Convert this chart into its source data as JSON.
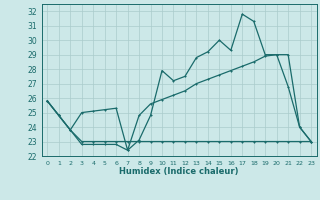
{
  "xlabel": "Humidex (Indice chaleur)",
  "bg_color": "#cce8e8",
  "grid_color": "#aacccc",
  "line_color": "#1a6b6b",
  "xlim": [
    -0.5,
    23.5
  ],
  "ylim": [
    22,
    32.5
  ],
  "xticks": [
    0,
    1,
    2,
    3,
    4,
    5,
    6,
    7,
    8,
    9,
    10,
    11,
    12,
    13,
    14,
    15,
    16,
    17,
    18,
    19,
    20,
    21,
    22,
    23
  ],
  "yticks": [
    22,
    23,
    24,
    25,
    26,
    27,
    28,
    29,
    30,
    31,
    32
  ],
  "series1_x": [
    0,
    1,
    2,
    3,
    4,
    5,
    6,
    7,
    8,
    9,
    10,
    11,
    12,
    13,
    14,
    15,
    16,
    17,
    18,
    19,
    20,
    21,
    22,
    23
  ],
  "series1_y": [
    25.8,
    24.8,
    23.8,
    22.8,
    22.8,
    22.8,
    22.8,
    22.4,
    23.1,
    24.8,
    27.9,
    27.2,
    27.5,
    28.8,
    29.2,
    30.0,
    29.3,
    31.8,
    31.3,
    29.0,
    29.0,
    26.8,
    24.0,
    23.0
  ],
  "series2_x": [
    0,
    1,
    2,
    3,
    4,
    5,
    6,
    7,
    8,
    9,
    10,
    11,
    12,
    13,
    14,
    15,
    16,
    17,
    18,
    19,
    20,
    21,
    22,
    23
  ],
  "series2_y": [
    25.8,
    24.8,
    23.8,
    25.0,
    25.1,
    25.2,
    25.3,
    22.4,
    24.8,
    25.6,
    25.9,
    26.2,
    26.5,
    27.0,
    27.3,
    27.6,
    27.9,
    28.2,
    28.5,
    28.9,
    29.0,
    29.0,
    24.0,
    23.0
  ],
  "series3_x": [
    0,
    1,
    2,
    3,
    4,
    5,
    6,
    7,
    8,
    9,
    10,
    11,
    12,
    13,
    14,
    15,
    16,
    17,
    18,
    19,
    20,
    21,
    22,
    23
  ],
  "series3_y": [
    25.8,
    24.8,
    23.8,
    23.0,
    23.0,
    23.0,
    23.0,
    23.0,
    23.0,
    23.0,
    23.0,
    23.0,
    23.0,
    23.0,
    23.0,
    23.0,
    23.0,
    23.0,
    23.0,
    23.0,
    23.0,
    23.0,
    23.0,
    23.0
  ]
}
